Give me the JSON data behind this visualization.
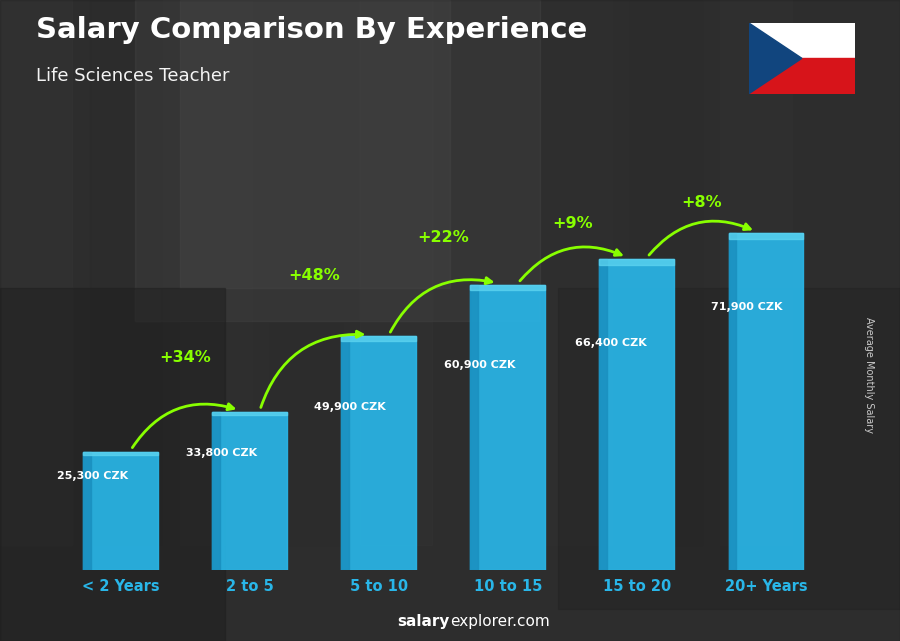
{
  "title": "Salary Comparison By Experience",
  "subtitle": "Life Sciences Teacher",
  "categories": [
    "< 2 Years",
    "2 to 5",
    "5 to 10",
    "10 to 15",
    "15 to 20",
    "20+ Years"
  ],
  "values": [
    25300,
    33800,
    49900,
    60900,
    66400,
    71900
  ],
  "value_labels": [
    "25,300 CZK",
    "33,800 CZK",
    "49,900 CZK",
    "60,900 CZK",
    "66,400 CZK",
    "71,900 CZK"
  ],
  "pct_labels": [
    "+34%",
    "+48%",
    "+22%",
    "+9%",
    "+8%"
  ],
  "bar_color": "#29b6e8",
  "bar_left_color": "#1a90c0",
  "bar_top_color": "#5dd4f0",
  "bg_color": "#4a4a4a",
  "title_color": "#ffffff",
  "pct_color": "#88ff00",
  "tick_color": "#29b6e8",
  "ylabel_text": "Average Monthly Salary",
  "footer_salary": "salary",
  "footer_rest": "explorer.com",
  "ylim_max": 82000,
  "bar_width": 0.58,
  "flag_blue": "#11457E",
  "flag_red": "#D7141A"
}
